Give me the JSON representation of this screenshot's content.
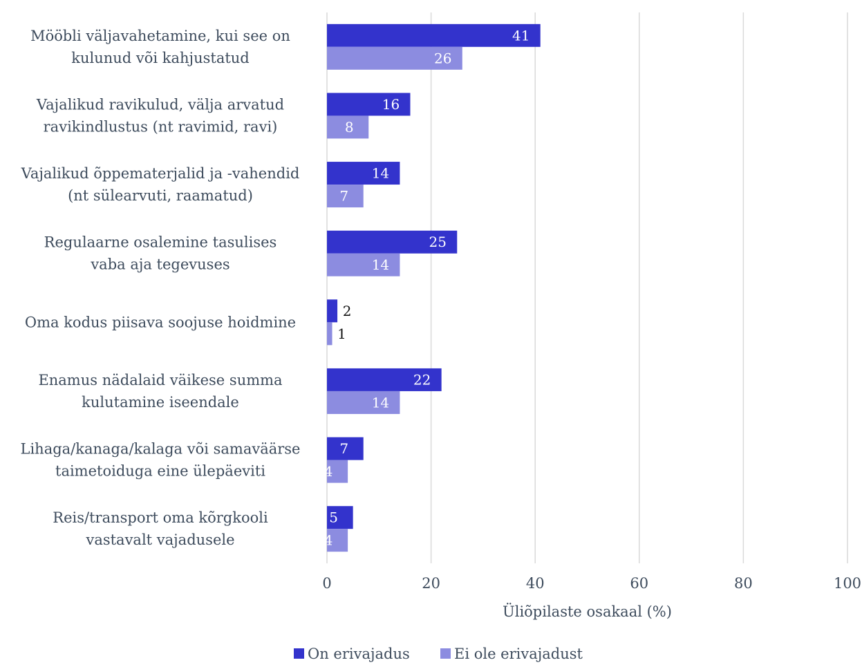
{
  "chart_data": {
    "type": "bar",
    "orientation": "horizontal",
    "categories": [
      [
        "Mööbli väljavahetamine, kui see on",
        "kulunud või kahjustatud"
      ],
      [
        "Vajalikud ravikulud, välja arvatud",
        "ravikindlustus (nt ravimid, ravi)"
      ],
      [
        "Vajalikud õppematerjalid ja -vahendid",
        "(nt sülearvuti, raamatud)"
      ],
      [
        "Regulaarne osalemine tasulises",
        "vaba aja tegevuses"
      ],
      [
        "Oma kodus piisava soojuse hoidmine"
      ],
      [
        "Enamus nädalaid väikese summa",
        "kulutamine iseendale"
      ],
      [
        "Lihaga/kanaga/kalaga või samaväärse",
        "taimetoiduga eine ülepäeviti"
      ],
      [
        "Reis/transport oma kõrgkooli",
        "vastavalt vajadusele"
      ]
    ],
    "series": [
      {
        "name": "On erivajadus",
        "color": "#3333cc",
        "values": [
          41,
          16,
          14,
          25,
          2,
          22,
          7,
          5
        ]
      },
      {
        "name": "Ei ole erivajadust",
        "color": "#8c8ce0",
        "values": [
          26,
          8,
          7,
          14,
          1,
          14,
          4,
          4
        ]
      }
    ],
    "xlabel": "Üliõpilaste osakaal (%)",
    "ylabel": "",
    "xlim": [
      0,
      100
    ],
    "xticks": [
      0,
      20,
      40,
      60,
      80,
      100
    ],
    "grid": true,
    "legend_position": "bottom"
  }
}
